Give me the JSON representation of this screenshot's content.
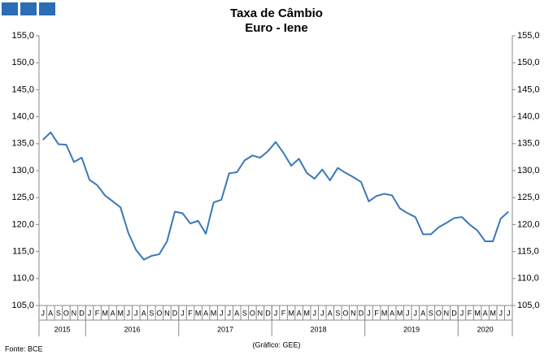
{
  "chart_data": {
    "type": "line",
    "title": "Taxa de Câmbio",
    "subtitle": "Euro - Iene",
    "source": "Fonte: BCE",
    "credit": "(Gráfico: GEE)",
    "categories": [
      "J",
      "A",
      "S",
      "O",
      "N",
      "D",
      "J",
      "F",
      "M",
      "A",
      "M",
      "J",
      "J",
      "A",
      "S",
      "O",
      "N",
      "D",
      "J",
      "F",
      "M",
      "A",
      "M",
      "J",
      "J",
      "A",
      "S",
      "O",
      "N",
      "D",
      "J",
      "F",
      "M",
      "A",
      "M",
      "J",
      "J",
      "A",
      "S",
      "O",
      "N",
      "D",
      "J",
      "F",
      "M",
      "A",
      "M",
      "J",
      "J",
      "A",
      "S",
      "O",
      "N",
      "D",
      "J",
      "F",
      "M",
      "A",
      "M",
      "J",
      "J"
    ],
    "years": [
      "2015",
      "2016",
      "2017",
      "2018",
      "2019",
      "2020"
    ],
    "series": [
      {
        "color": "#3a78b8",
        "values": [
          135.7,
          137.1,
          134.9,
          134.8,
          131.6,
          132.4,
          128.3,
          127.3,
          125.4,
          124.3,
          123.2,
          118.5,
          115.3,
          113.5,
          114.2,
          114.5,
          116.9,
          122.4,
          122.1,
          120.2,
          120.7,
          118.3,
          124.1,
          124.6,
          129.5,
          129.7,
          131.9,
          132.8,
          132.4,
          133.6,
          135.3,
          133.3,
          130.9,
          132.2,
          129.6,
          128.5,
          130.2,
          128.2,
          130.5,
          129.6,
          128.8,
          127.9,
          124.3,
          125.3,
          125.7,
          125.4,
          123.0,
          122.1,
          121.4,
          118.2,
          118.2,
          119.5,
          120.3,
          121.2,
          121.4,
          120.0,
          118.9,
          116.9,
          116.9,
          121.1,
          122.4
        ]
      }
    ],
    "ylim": [
      105,
      155
    ],
    "yticks": [
      {
        "value": 105,
        "label": "105,0"
      },
      {
        "value": 110,
        "label": "110,0"
      },
      {
        "value": 115,
        "label": "115,0"
      },
      {
        "value": 120,
        "label": "120,0"
      },
      {
        "value": 125,
        "label": "125,0"
      },
      {
        "value": 130,
        "label": "130,0"
      },
      {
        "value": 135,
        "label": "135,0"
      },
      {
        "value": 140,
        "label": "140,0"
      },
      {
        "value": 145,
        "label": "145,0"
      },
      {
        "value": 150,
        "label": "150,0"
      },
      {
        "value": 155,
        "label": "155,0"
      }
    ]
  }
}
